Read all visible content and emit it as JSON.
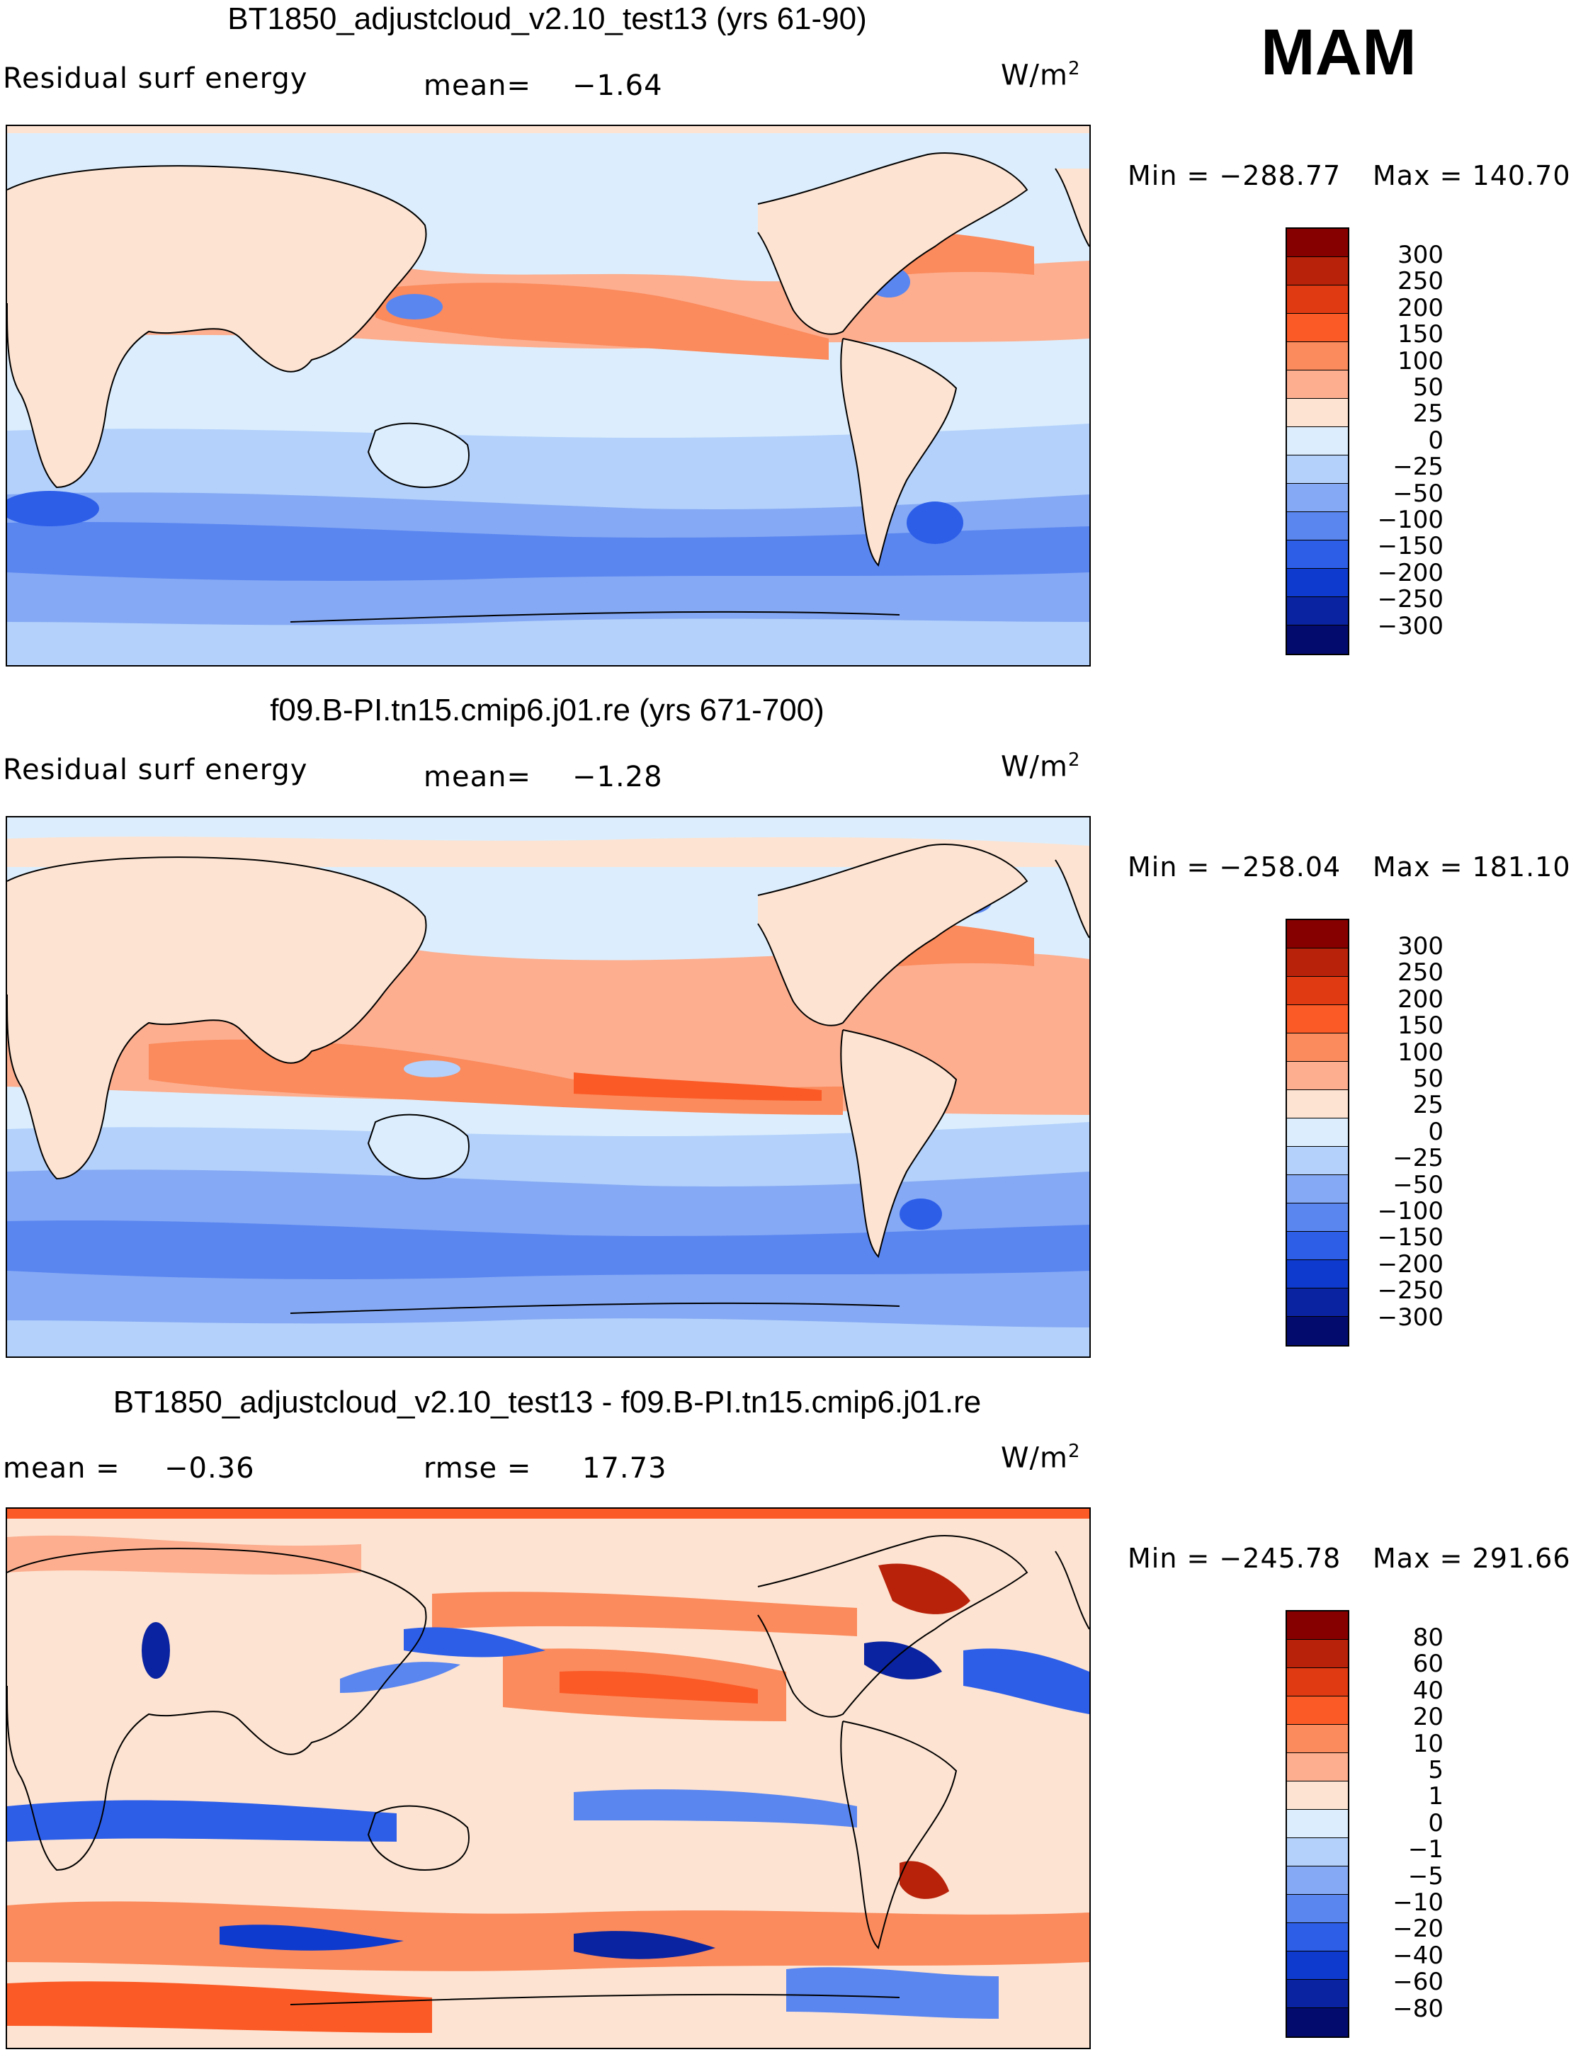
{
  "season": "MAM",
  "units_base": "W/m",
  "units_exp": "2",
  "colors": {
    "abs": [
      "#870000",
      "#b8220a",
      "#df3a12",
      "#fb5a26",
      "#fb8a5c",
      "#fcae8f",
      "#fde3d1",
      "#dceefd",
      "#b3d1fb",
      "#85a9f4",
      "#5a86f0",
      "#2d5ee8",
      "#0e3acd",
      "#0a23a0",
      "#030b6d"
    ],
    "diff": [
      "#870000",
      "#b8220a",
      "#df3a12",
      "#fb5a26",
      "#fb8a5c",
      "#fcae8f",
      "#fde3d1",
      "#dceefd",
      "#b3d1fb",
      "#85a9f4",
      "#5a86f0",
      "#2d5ee8",
      "#0e3acd",
      "#0a23a0",
      "#030b6d"
    ]
  },
  "chart_data": [
    {
      "type": "heatmap",
      "title": "BT1850_adjustcloud_v2.10_test13 (yrs 61-90)",
      "variable": "Residual surf energy",
      "stat_label": "mean=",
      "stat_value": "−1.64",
      "min_label": "Min = −288.77",
      "max_label": "Max = 140.70",
      "min": -288.77,
      "max": 140.7,
      "mean": -1.64,
      "levels": [
        "300",
        "250",
        "200",
        "150",
        "100",
        "50",
        "25",
        "0",
        "−25",
        "−50",
        "−100",
        "−150",
        "−200",
        "−250",
        "−300"
      ]
    },
    {
      "type": "heatmap",
      "title": "f09.B-PI.tn15.cmip6.j01.re (yrs 671-700)",
      "variable": "Residual surf energy",
      "stat_label": "mean=",
      "stat_value": "−1.28",
      "min_label": "Min = −258.04",
      "max_label": "Max = 181.10",
      "min": -258.04,
      "max": 181.1,
      "mean": -1.28,
      "levels": [
        "300",
        "250",
        "200",
        "150",
        "100",
        "50",
        "25",
        "0",
        "−25",
        "−50",
        "−100",
        "−150",
        "−200",
        "−250",
        "−300"
      ]
    },
    {
      "type": "heatmap",
      "title": "BT1850_adjustcloud_v2.10_test13 - f09.B-PI.tn15.cmip6.j01.re",
      "stat_label": "mean =",
      "stat_value": "−0.36",
      "rmse_label": "rmse =",
      "rmse_value": "17.73",
      "min_label": "Min = −245.78",
      "max_label": "Max = 291.66",
      "min": -245.78,
      "max": 291.66,
      "mean": -0.36,
      "rmse": 17.73,
      "levels": [
        "80",
        "60",
        "40",
        "20",
        "10",
        "5",
        "1",
        "0",
        "−1",
        "−5",
        "−10",
        "−20",
        "−40",
        "−60",
        "−80"
      ]
    }
  ]
}
